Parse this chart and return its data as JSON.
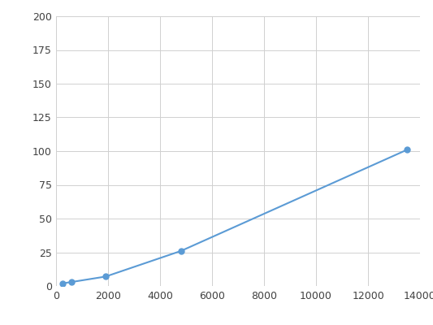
{
  "x": [
    250,
    600,
    1900,
    4800,
    13500
  ],
  "y": [
    2,
    3,
    7,
    26,
    101
  ],
  "line_color": "#5b9bd5",
  "marker_color": "#5b9bd5",
  "marker_size": 5,
  "line_width": 1.5,
  "xlim": [
    0,
    14000
  ],
  "ylim": [
    0,
    200
  ],
  "xticks": [
    0,
    2000,
    4000,
    6000,
    8000,
    10000,
    12000,
    14000
  ],
  "yticks": [
    0,
    25,
    50,
    75,
    100,
    125,
    150,
    175,
    200
  ],
  "grid_color": "#d0d0d0",
  "background_color": "#ffffff",
  "tick_label_size": 9,
  "tick_label_color": "#404040"
}
